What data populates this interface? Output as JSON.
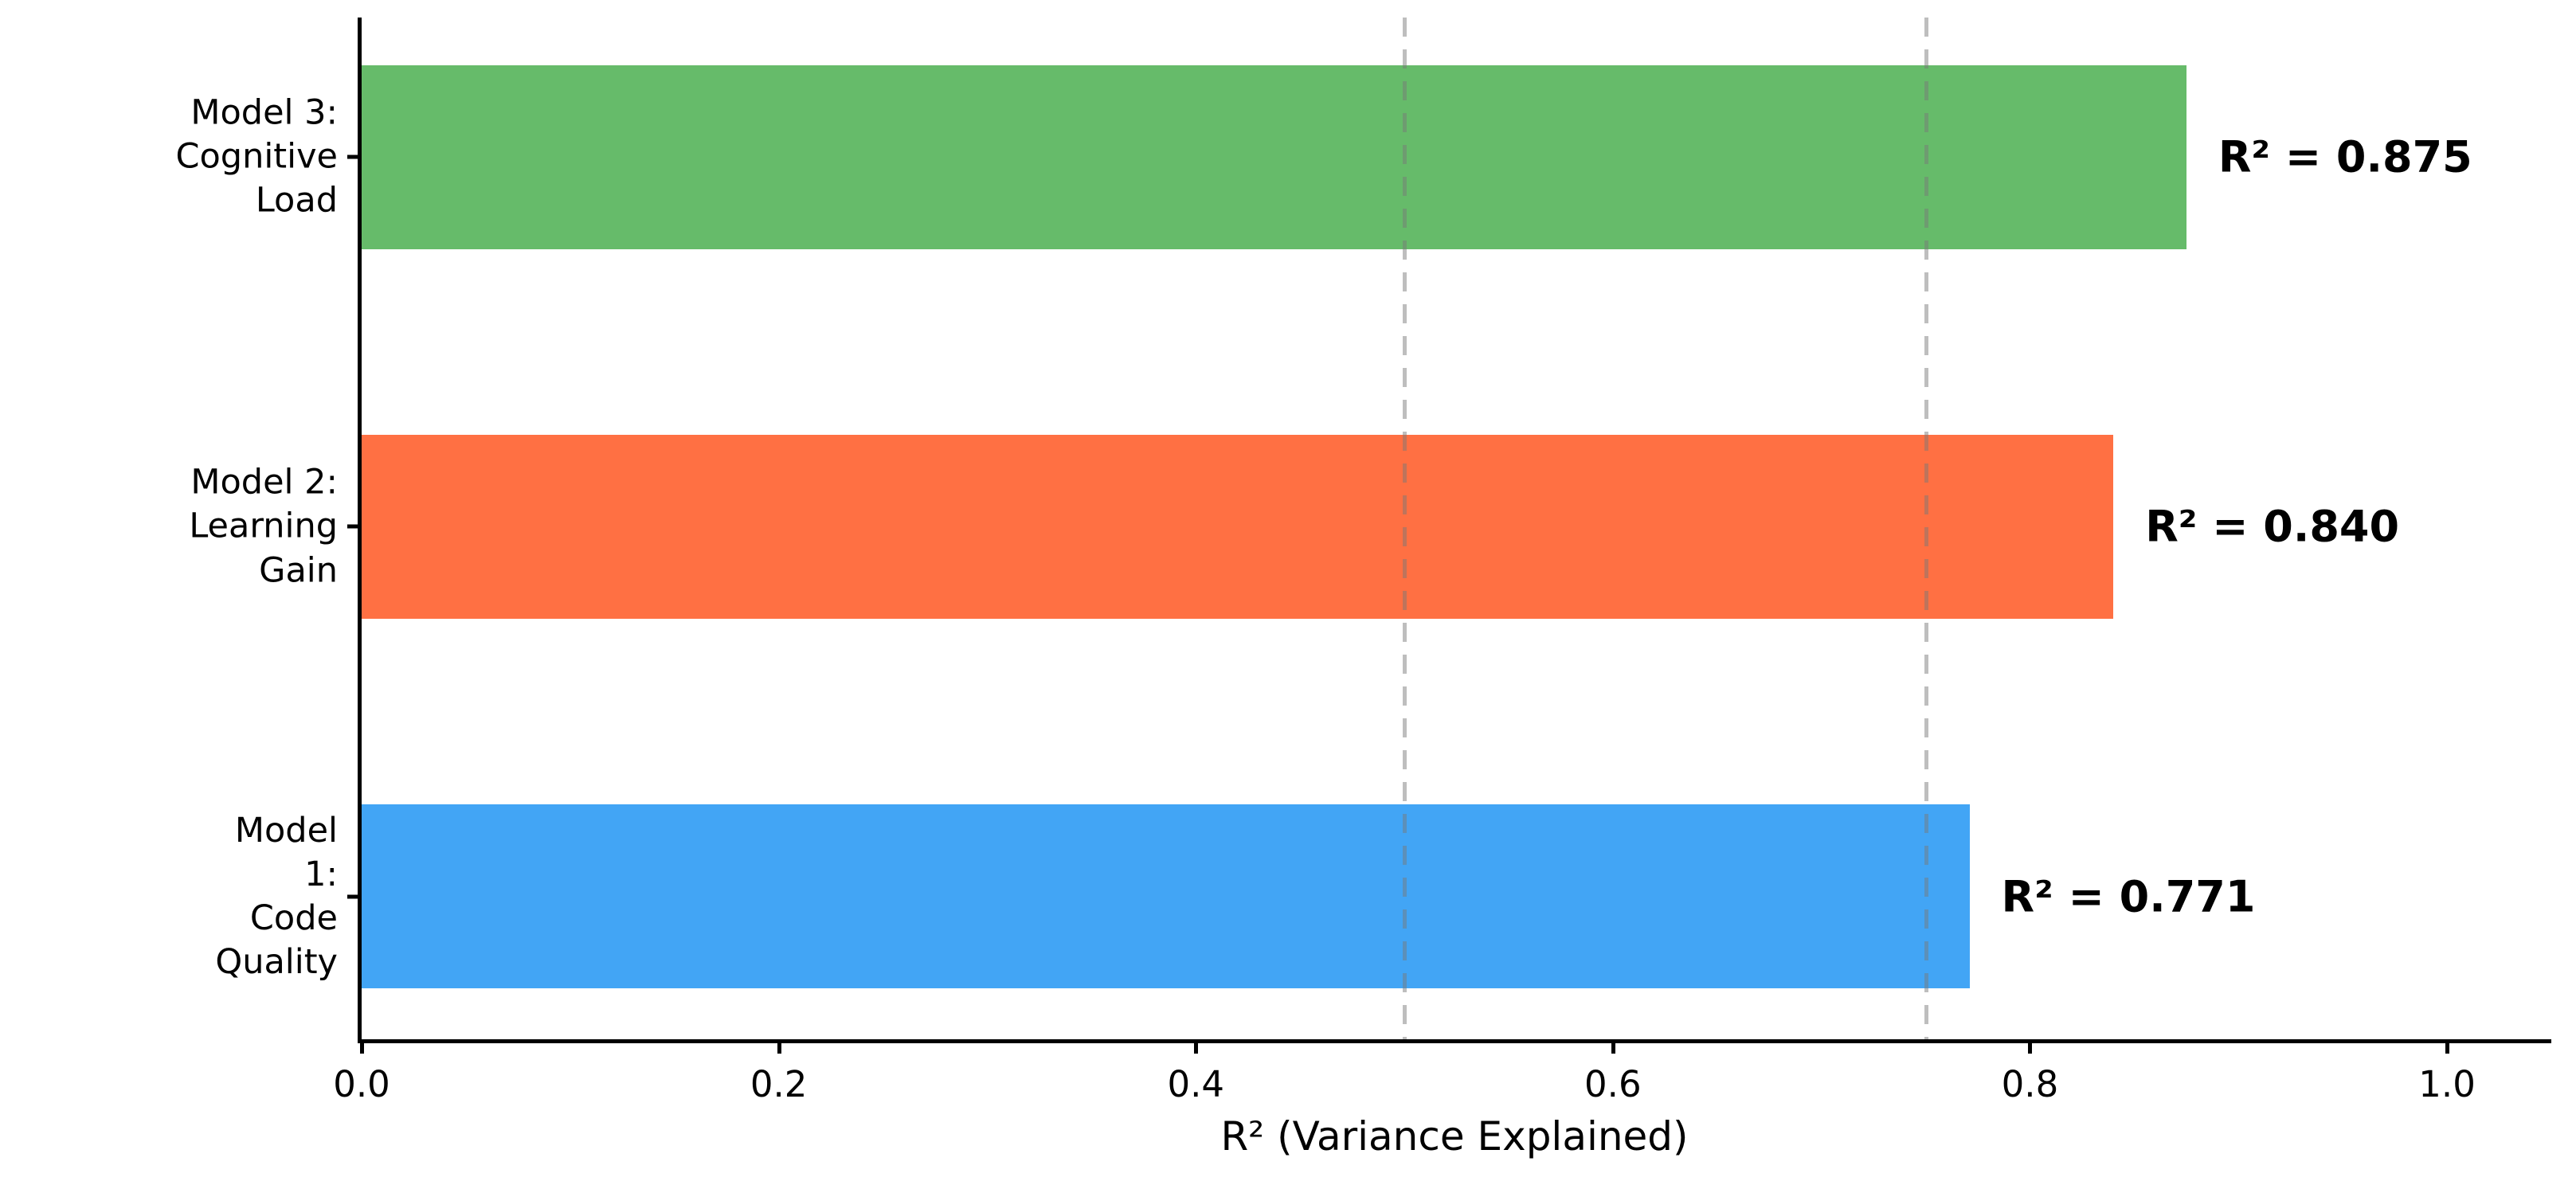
{
  "chart_data": {
    "type": "bar",
    "orientation": "horizontal",
    "title": "",
    "xlabel": "R² (Variance Explained)",
    "ylabel": "",
    "xlim": [
      0,
      1.05
    ],
    "xtick_values": [
      0,
      0.2,
      0.4,
      0.6,
      0.8,
      1.0
    ],
    "xtick_labels": [
      "0.0",
      "0.2",
      "0.4",
      "0.6",
      "0.8",
      "1.0"
    ],
    "grid": "vertical dashed reference lines only",
    "gridlines": {
      "values": [
        0.5,
        0.75
      ],
      "style": "dashed",
      "color": "#c7c7c7"
    },
    "categories": [
      "Model 3:\nCognitive Load",
      "Model 2:\nLearning Gain",
      "Model 1:\nCode Quality"
    ],
    "bars": [
      {
        "label": "Model 3:\nCognitive Load",
        "value": 0.875,
        "annotation": "R² = 0.875",
        "color": "#66bb6a"
      },
      {
        "label": "Model 2:\nLearning Gain",
        "value": 0.84,
        "annotation": "R² = 0.840",
        "color": "#ff7043"
      },
      {
        "label": "Model 1:\nCode Quality",
        "value": 0.771,
        "annotation": "R² = 0.771",
        "color": "#42a5f5"
      }
    ],
    "axis_color": "#000000",
    "background_color": "#ffffff",
    "legend": "none"
  }
}
